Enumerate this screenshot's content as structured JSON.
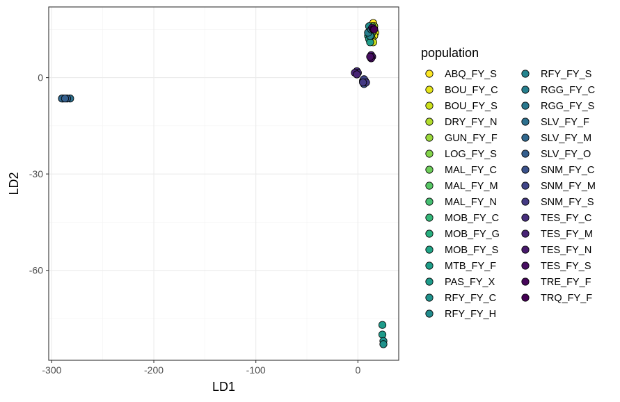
{
  "chart_data": {
    "type": "scatter",
    "title": "",
    "xlabel": "LD1",
    "ylabel": "LD2",
    "xlim": [
      -303,
      40
    ],
    "ylim": [
      -88,
      22
    ],
    "x_ticks": [
      -300,
      -200,
      -100,
      0
    ],
    "y_ticks": [
      0,
      -30,
      -60
    ],
    "x_tick_labels": [
      "-300",
      "-200",
      "-100",
      "0"
    ],
    "y_tick_labels": [
      "0",
      "-30",
      "-60"
    ],
    "grid": true,
    "legend_placement": "right",
    "legend_title": "population",
    "series": [
      {
        "name": "ABQ_FY_S",
        "color": "#FDE725",
        "points": [
          [
            15,
            17
          ],
          [
            16,
            15
          ]
        ]
      },
      {
        "name": "BOU_FY_C",
        "color": "#E5E419",
        "points": [
          [
            17,
            14
          ],
          [
            16,
            13
          ]
        ]
      },
      {
        "name": "BOU_FY_S",
        "color": "#CDE11D",
        "points": [
          [
            14,
            12
          ],
          [
            15,
            11
          ]
        ]
      },
      {
        "name": "DRY_FY_N",
        "color": "#B2DD2D",
        "points": [
          [
            15,
            15
          ],
          [
            16,
            16
          ]
        ]
      },
      {
        "name": "GUN_FY_F",
        "color": "#9BD93C",
        "points": [
          [
            14,
            14
          ]
        ]
      },
      {
        "name": "LOG_FY_S",
        "color": "#84D44B",
        "points": [
          [
            13,
            15
          ]
        ]
      },
      {
        "name": "MAL_FY_C",
        "color": "#6DCD59",
        "points": [
          [
            14,
            16
          ]
        ]
      },
      {
        "name": "MAL_FY_M",
        "color": "#58C765",
        "points": [
          [
            12,
            14
          ]
        ]
      },
      {
        "name": "MAL_FY_N",
        "color": "#45BE71",
        "points": [
          [
            13,
            13
          ]
        ]
      },
      {
        "name": "MOB_FY_C",
        "color": "#35B779",
        "points": [
          [
            12,
            15
          ]
        ]
      },
      {
        "name": "MOB_FY_G",
        "color": "#29AF7F",
        "points": [
          [
            11,
            14
          ]
        ]
      },
      {
        "name": "MOB_FY_S",
        "color": "#20A486",
        "points": [
          [
            10,
            13
          ]
        ]
      },
      {
        "name": "MTB_FY_F",
        "color": "#1F9E89",
        "points": [
          [
            11,
            12
          ],
          [
            12,
            11
          ]
        ]
      },
      {
        "name": "PAS_FY_X",
        "color": "#1E9B8A",
        "points": [
          [
            24,
            -77
          ],
          [
            24,
            -80
          ]
        ]
      },
      {
        "name": "RFY_FY_C",
        "color": "#20928C",
        "points": [
          [
            25,
            -82
          ],
          [
            25,
            -83
          ]
        ]
      },
      {
        "name": "RFY_FY_H",
        "color": "#228C8D",
        "points": [
          [
            10,
            14
          ],
          [
            11,
            16
          ]
        ]
      },
      {
        "name": "RFY_FY_S",
        "color": "#25848E",
        "points": [
          [
            12,
            13
          ]
        ]
      },
      {
        "name": "RGG_FY_C",
        "color": "#277F8E",
        "points": [
          [
            10,
            14
          ]
        ]
      },
      {
        "name": "RGG_FY_S",
        "color": "#2A788E",
        "points": [
          [
            13,
            15
          ]
        ]
      },
      {
        "name": "SLV_FY_F",
        "color": "#2D708E",
        "points": [
          [
            -289,
            -6.5
          ],
          [
            -282,
            -6.5
          ]
        ]
      },
      {
        "name": "SLV_FY_M",
        "color": "#31688E",
        "points": [
          [
            -290,
            -6.5
          ]
        ]
      },
      {
        "name": "SLV_FY_O",
        "color": "#355F8D",
        "points": [
          [
            -285,
            -6.5
          ],
          [
            -287,
            -6.5
          ]
        ]
      },
      {
        "name": "SNM_FY_C",
        "color": "#3B528B",
        "points": [
          [
            5,
            -1
          ],
          [
            6,
            -2
          ]
        ]
      },
      {
        "name": "SNM_FY_M",
        "color": "#404588",
        "points": [
          [
            7,
            -1
          ],
          [
            6,
            -0.5
          ]
        ]
      },
      {
        "name": "SNM_FY_S",
        "color": "#443A83",
        "points": [
          [
            8,
            -1.5
          ],
          [
            5,
            -1.5
          ]
        ]
      },
      {
        "name": "TES_FY_C",
        "color": "#472F7D",
        "points": [
          [
            -1,
            2
          ],
          [
            0,
            1.5
          ]
        ]
      },
      {
        "name": "TES_FY_M",
        "color": "#482475",
        "points": [
          [
            -3,
            1.5
          ],
          [
            -1,
            1
          ]
        ]
      },
      {
        "name": "TES_FY_N",
        "color": "#481A6C",
        "points": [
          [
            13,
            7
          ],
          [
            14,
            6.5
          ]
        ]
      },
      {
        "name": "TES_FY_S",
        "color": "#470E61",
        "points": [
          [
            13,
            6
          ],
          [
            12,
            6.5
          ]
        ]
      },
      {
        "name": "TRE_FY_F",
        "color": "#46075A",
        "points": [
          [
            14,
            15.5
          ],
          [
            15,
            15
          ]
        ]
      },
      {
        "name": "TRQ_FY_F",
        "color": "#440154",
        "points": [
          [
            16,
            15
          ]
        ]
      }
    ]
  }
}
